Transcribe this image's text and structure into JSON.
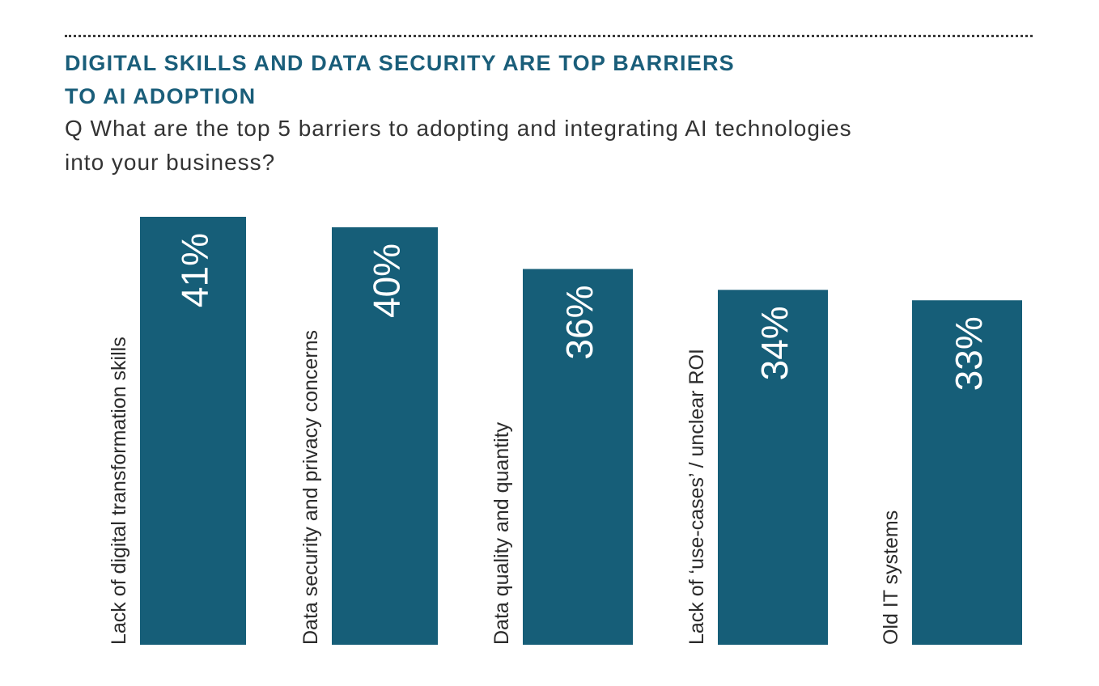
{
  "header": {
    "title_lines": [
      "DIGITAL SKILLS AND DATA SECURITY ARE TOP BARRIERS",
      "TO AI ADOPTION"
    ],
    "subtitle_lines": [
      "Q What are the top 5 barriers to adopting and integrating AI technologies",
      "into your business?"
    ]
  },
  "colors": {
    "bar": "#165e78",
    "title": "#1a5e7a"
  },
  "chart_data": {
    "type": "bar",
    "title": "DIGITAL SKILLS AND DATA SECURITY ARE TOP BARRIERS TO AI ADOPTION",
    "categories": [
      "Lack of digital transformation skills",
      "Data security and privacy concerns",
      "Data quality and quantity",
      "Lack of ‘use-cases’ / unclear ROI",
      "Old IT systems"
    ],
    "values": [
      41,
      40,
      36,
      34,
      33
    ],
    "value_labels": [
      "41%",
      "40%",
      "36%",
      "34%",
      "33%"
    ],
    "ylim": [
      0,
      41
    ],
    "grid": false,
    "legend": "none"
  }
}
